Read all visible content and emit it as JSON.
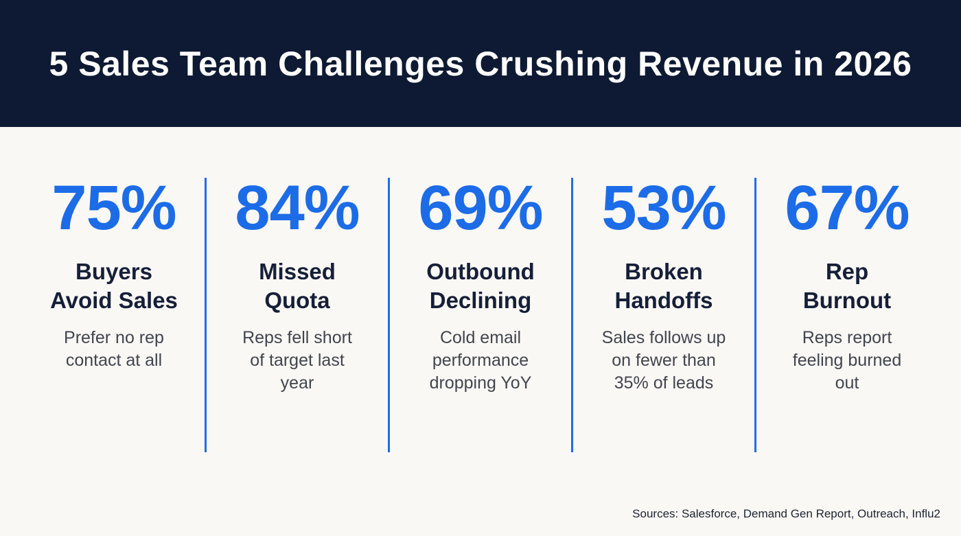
{
  "header": {
    "title": "5 Sales Team Challenges Crushing Revenue in 2026"
  },
  "stats": [
    {
      "value": "75%",
      "heading": "Buyers\nAvoid Sales",
      "description": "Prefer no rep\ncontact at all"
    },
    {
      "value": "84%",
      "heading": "Missed\nQuota",
      "description": "Reps fell short\nof target last\nyear"
    },
    {
      "value": "69%",
      "heading": "Outbound\nDeclining",
      "description": "Cold email\nperformance\ndropping YoY"
    },
    {
      "value": "53%",
      "heading": "Broken\nHandoffs",
      "description": "Sales follows up\non fewer than\n35% of leads"
    },
    {
      "value": "67%",
      "heading": "Rep\nBurnout",
      "description": "Reps report\nfeeling burned\nout"
    }
  ],
  "footer": {
    "sources": "Sources: Salesforce, Demand Gen Report, Outreach, Influ2"
  },
  "colors": {
    "header_bg": "#0e1a33",
    "accent_blue": "#1c6ce8",
    "divider_blue": "#1d6ee8",
    "heading_dark": "#161f38",
    "body_text": "#41454e",
    "page_bg": "#faf8f5",
    "title_text": "#ffffff"
  },
  "chart_data": {
    "type": "table",
    "title": "5 Sales Team Challenges Crushing Revenue in 2026",
    "categories": [
      "Buyers Avoid Sales",
      "Missed Quota",
      "Outbound Declining",
      "Broken Handoffs",
      "Rep Burnout"
    ],
    "values": [
      75,
      84,
      69,
      53,
      67
    ],
    "units": "%",
    "notes": [
      "Prefer no rep contact at all",
      "Reps fell short of target last year",
      "Cold email performance dropping YoY",
      "Sales follows up on fewer than 35% of leads",
      "Reps report feeling burned out"
    ],
    "source": "Sources: Salesforce, Demand Gen Report, Outreach, Influ2",
    "legend": false,
    "grid": false
  }
}
